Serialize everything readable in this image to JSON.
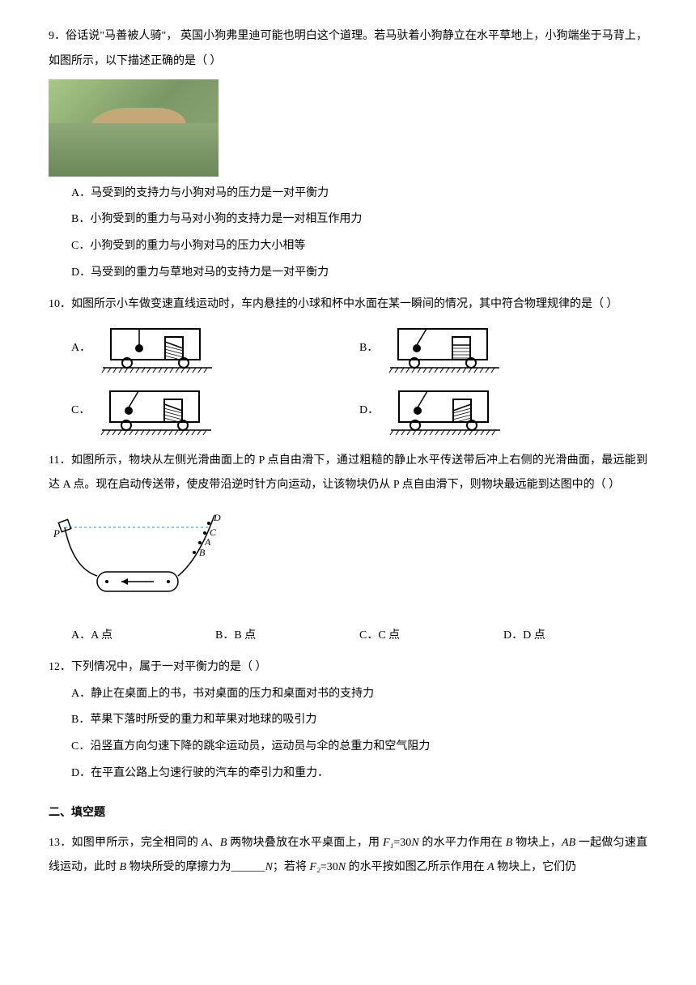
{
  "q9": {
    "num": "9．",
    "text": "俗话说\"马善被人骑\"，  英国小狗弗里迪可能也明白这个道理。若马驮着小狗静立在水平草地上，小狗端坐于马背上，如图所示，以下描述正确的是（    ）",
    "options": {
      "A": "A．马受到的支持力与小狗对马的压力是一对平衡力",
      "B": "B．小狗受到的重力与马对小狗的支持力是一对相互作用力",
      "C": "C．小狗受到的重力与小狗对马的压力大小相等",
      "D": "D．马受到的重力与草地对马的支持力是一对平衡力"
    }
  },
  "q10": {
    "num": "10．",
    "text": "如图所示小车做变速直线运动时，车内悬挂的小球和杯中水面在某一瞬间的情况，其中符合物理规律的是（      ）",
    "opts": [
      "A．",
      "B．",
      "C．",
      "D．"
    ],
    "carts": [
      {
        "ball_angle": 90,
        "water_tilt": 8
      },
      {
        "ball_angle": 110,
        "water_tilt": 0
      },
      {
        "ball_angle": 110,
        "water_tilt": 8
      },
      {
        "ball_angle": 110,
        "water_tilt": -8
      }
    ],
    "stroke": "#000000",
    "fill_ball": "#000000"
  },
  "q11": {
    "num": "11．",
    "text": "如图所示，物块从左侧光滑曲面上的 P 点自由滑下，通过粗糙的静止水平传送带后冲上右侧的光滑曲面，最远能到达 A 点。现在启动传送带，使皮带沿逆时针方向运动，让该物块仍从 P 点自由滑下，则物块最远能到达图中的（      ）",
    "labels": {
      "P": "P",
      "A": "A",
      "B": "B",
      "C": "C",
      "D": "D"
    },
    "options": {
      "A": "A．A 点",
      "B": "B．B 点",
      "C": "C．C 点",
      "D": "D．D 点"
    },
    "diagram": {
      "curve_color": "#000000",
      "dash_color": "#3388cc",
      "stroke_width": 1.5
    }
  },
  "q12": {
    "num": "12．",
    "text": "下列情况中，属于一对平衡力的是（    ）",
    "options": {
      "A": "A．静止在桌面上的书，书对桌面的压力和桌面对书的支持力",
      "B": "B．苹果下落时所受的重力和苹果对地球的吸引力",
      "C": "C．沿竖直方向匀速下降的跳伞运动员，运动员与伞的总重力和空气阻力",
      "D": "D．在平直公路上匀速行驶的汽车的牵引力和重力．"
    }
  },
  "section2": "二、填空题",
  "q13": {
    "num": "13．",
    "text_parts": [
      "如图甲所示，完全相同的 ",
      "A",
      "、",
      "B",
      " 两物块叠放在水平桌面上，用 ",
      "F₁",
      "=30",
      "N",
      " 的水平力作用在 ",
      "B",
      " 物块上，",
      "AB",
      " 一起做匀速直线运动，此时 ",
      "B",
      " 物块所受的摩擦力为______",
      "N",
      "；若将 ",
      "F₂",
      "=30",
      "N",
      " 的水平按如图乙所示作用在 ",
      "A",
      " 物块上，它们仍"
    ]
  }
}
